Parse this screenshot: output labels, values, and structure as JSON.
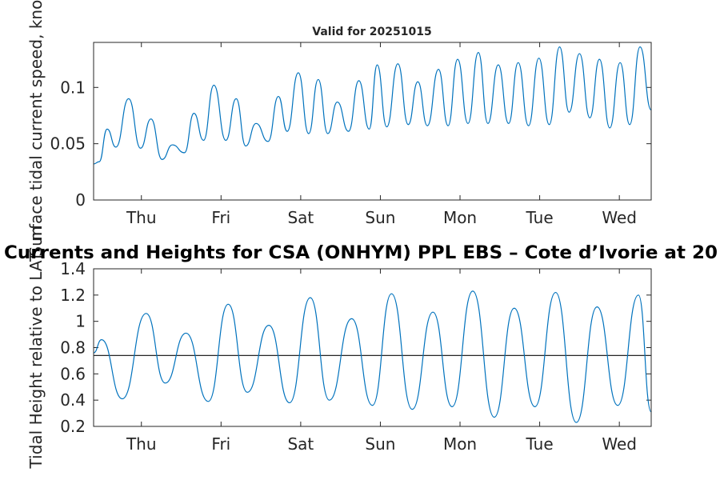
{
  "chart_data": [
    {
      "id": "speed",
      "type": "line",
      "title": "Valid for 20251015",
      "ylabel": "Surface tidal current speed, knots",
      "xlabel": "",
      "ylim": [
        0,
        0.14
      ],
      "yticks": [
        0,
        0.05,
        0.1
      ],
      "ytick_labels": [
        "0",
        "0.05",
        "0.1"
      ],
      "xlim": [
        -0.6,
        6.4
      ],
      "xticks": [
        0,
        1,
        2,
        3,
        4,
        5,
        6
      ],
      "xtick_labels": [
        "Thu",
        "Fri",
        "Sat",
        "Sun",
        "Mon",
        "Tue",
        "Wed"
      ],
      "line_color": "#0072BD",
      "series": [
        {
          "name": "current speed",
          "x": [
            -0.6,
            -0.53,
            -0.43,
            -0.32,
            -0.16,
            -0.01,
            0.12,
            0.26,
            0.39,
            0.54,
            0.66,
            0.78,
            0.91,
            1.06,
            1.19,
            1.31,
            1.44,
            1.59,
            1.72,
            1.83,
            1.97,
            2.1,
            2.22,
            2.34,
            2.46,
            2.6,
            2.73,
            2.86,
            2.96,
            3.08,
            3.22,
            3.35,
            3.47,
            3.59,
            3.73,
            3.85,
            3.97,
            4.1,
            4.23,
            4.35,
            4.48,
            4.61,
            4.73,
            4.86,
            4.99,
            5.12,
            5.25,
            5.37,
            5.5,
            5.63,
            5.75,
            5.88,
            6.01,
            6.13,
            6.26,
            6.4
          ],
          "values": [
            0.032,
            0.034,
            0.063,
            0.047,
            0.09,
            0.046,
            0.072,
            0.036,
            0.049,
            0.042,
            0.077,
            0.053,
            0.102,
            0.053,
            0.09,
            0.048,
            0.068,
            0.052,
            0.092,
            0.061,
            0.113,
            0.059,
            0.107,
            0.059,
            0.087,
            0.061,
            0.106,
            0.063,
            0.12,
            0.065,
            0.121,
            0.067,
            0.105,
            0.066,
            0.116,
            0.066,
            0.125,
            0.068,
            0.131,
            0.068,
            0.12,
            0.068,
            0.122,
            0.066,
            0.126,
            0.067,
            0.136,
            0.078,
            0.13,
            0.073,
            0.125,
            0.064,
            0.122,
            0.067,
            0.136,
            0.08
          ]
        }
      ]
    },
    {
      "id": "height",
      "type": "line",
      "title": "Currents and Heights for CSA (ONHYM) PPL EBS  – Cote d’Ivorie at 20",
      "ylabel": "Tidal Height relative to LAT, m",
      "xlabel": "",
      "ylim": [
        0.2,
        1.4
      ],
      "yticks": [
        0.2,
        0.4,
        0.6,
        0.8,
        1,
        1.2,
        1.4
      ],
      "ytick_labels": [
        "0.2",
        "0.4",
        "0.6",
        "0.8",
        "1",
        "1.2",
        "1.4"
      ],
      "xlim": [
        -0.6,
        6.4
      ],
      "xticks": [
        0,
        1,
        2,
        3,
        4,
        5,
        6
      ],
      "xtick_labels": [
        "Thu",
        "Fri",
        "Sat",
        "Sun",
        "Mon",
        "Tue",
        "Wed"
      ],
      "line_color": "#0072BD",
      "reference_line": {
        "y": 0.74,
        "color": "#262626"
      },
      "series": [
        {
          "name": "tidal height",
          "x": [
            -0.6,
            -0.5,
            -0.24,
            0.06,
            0.3,
            0.56,
            0.84,
            1.09,
            1.33,
            1.6,
            1.86,
            2.12,
            2.36,
            2.64,
            2.9,
            3.14,
            3.4,
            3.66,
            3.9,
            4.16,
            4.43,
            4.68,
            4.94,
            5.2,
            5.46,
            5.72,
            5.98,
            6.24,
            6.4
          ],
          "values": [
            0.76,
            0.86,
            0.41,
            1.06,
            0.53,
            0.91,
            0.39,
            1.13,
            0.46,
            0.97,
            0.38,
            1.18,
            0.4,
            1.02,
            0.36,
            1.21,
            0.33,
            1.07,
            0.35,
            1.23,
            0.27,
            1.1,
            0.35,
            1.22,
            0.23,
            1.11,
            0.36,
            1.2,
            0.31
          ]
        }
      ]
    }
  ]
}
